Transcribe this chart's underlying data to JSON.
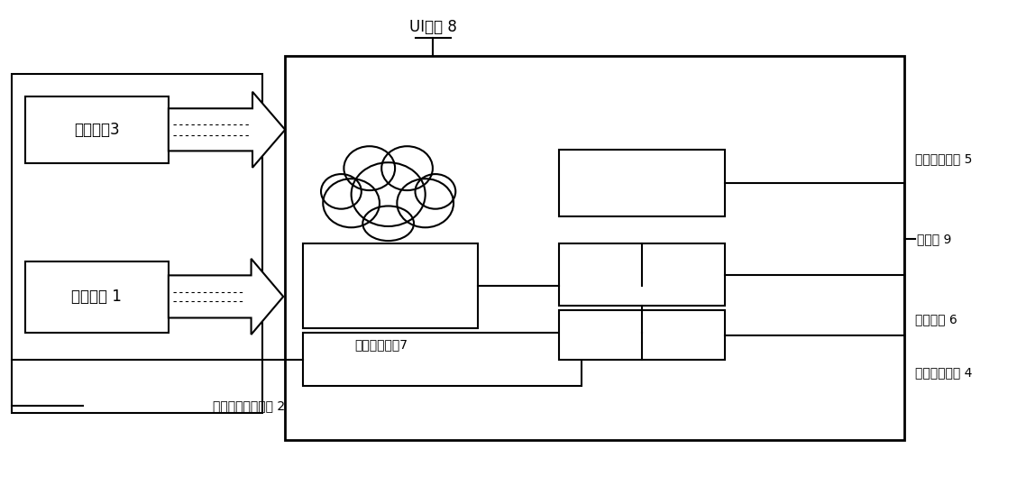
{
  "bg_color": "#ffffff",
  "line_color": "#000000",
  "video_label": "视频监控3",
  "thermal_label": "热成像仪 1",
  "ui_label": "UI终端 8",
  "temp_label": "温度校正模块 5",
  "face_label": "人脸识别模块7",
  "data_label": "数据传输串口模块 2",
  "storage_label": "存储模块 6",
  "info_label": "信息处理模块 4",
  "computer_label": "计算机 9"
}
